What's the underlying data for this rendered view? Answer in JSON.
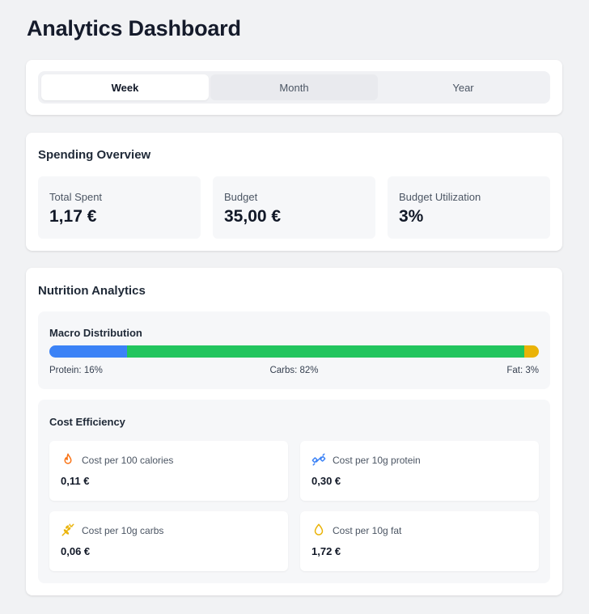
{
  "page": {
    "title": "Analytics Dashboard"
  },
  "period_tabs": [
    {
      "label": "Week",
      "active": true
    },
    {
      "label": "Month",
      "active": false
    },
    {
      "label": "Year",
      "active": false
    }
  ],
  "spending": {
    "heading": "Spending Overview",
    "stats": [
      {
        "label": "Total Spent",
        "value": "1,17 €"
      },
      {
        "label": "Budget",
        "value": "35,00 €"
      },
      {
        "label": "Budget Utilization",
        "value": "3%"
      }
    ]
  },
  "nutrition": {
    "heading": "Nutrition Analytics",
    "macro": {
      "heading": "Macro Distribution",
      "segments": [
        {
          "label": "Protein: 16%",
          "percent": 16,
          "color": "#3b82f6"
        },
        {
          "label": "Carbs: 82%",
          "percent": 82,
          "color": "#22c55e"
        },
        {
          "label": "Fat: 3%",
          "percent": 3,
          "color": "#eab308"
        }
      ]
    },
    "cost": {
      "heading": "Cost Efficiency",
      "metrics": [
        {
          "icon": "flame-icon",
          "label": "Cost per 100 calories",
          "value": "0,11 €",
          "color": "#f97316"
        },
        {
          "icon": "dumbbell-icon",
          "label": "Cost per 10g protein",
          "value": "0,30 €",
          "color": "#3b82f6"
        },
        {
          "icon": "wheat-icon",
          "label": "Cost per 10g carbs",
          "value": "0,06 €",
          "color": "#eab308"
        },
        {
          "icon": "droplet-icon",
          "label": "Cost per 10g fat",
          "value": "1,72 €",
          "color": "#eab308"
        }
      ]
    }
  }
}
